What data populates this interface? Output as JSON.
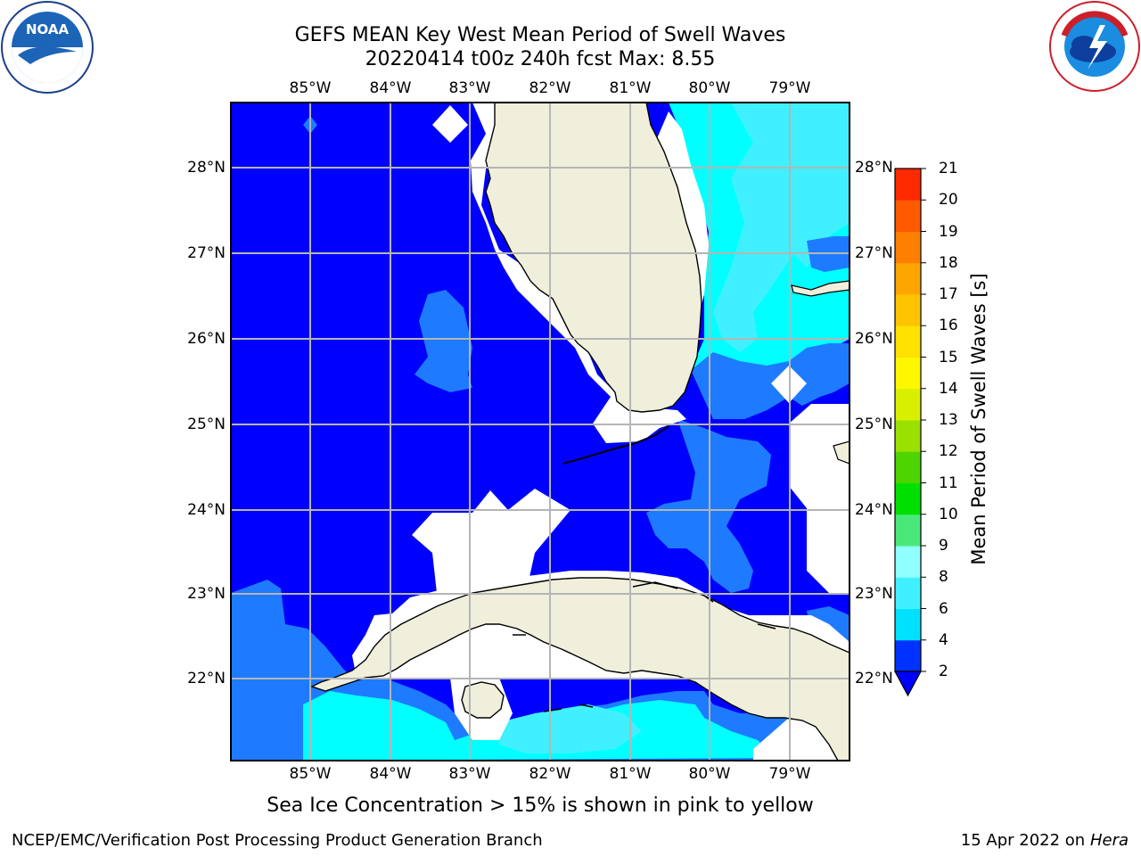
{
  "title_line1": "GEFS MEAN Key West Mean Period of Swell Waves",
  "title_line2": "20220414 t00z 240h fcst   Max: 8.55",
  "logos": {
    "left": "noaa-logo",
    "right": "nws-logo",
    "noaa_text": "NOAA",
    "nws_text": "NATIONAL WEATHER SERVICE"
  },
  "lon_labels": [
    "85°W",
    "84°W",
    "83°W",
    "82°W",
    "81°W",
    "80°W",
    "79°W"
  ],
  "lat_labels": [
    "28°N",
    "27°N",
    "26°N",
    "25°N",
    "24°N",
    "23°N",
    "22°N"
  ],
  "colorbar": {
    "title": "Mean Period of Swell Waves [s]",
    "ticks": [
      "21",
      "20",
      "19",
      "18",
      "17",
      "16",
      "15",
      "14",
      "13",
      "12",
      "11",
      "10",
      "9",
      "8",
      "6",
      "4",
      "2"
    ],
    "levels": [
      2,
      4,
      6,
      8,
      9,
      10,
      11,
      12,
      13,
      14,
      15,
      16,
      17,
      18,
      19,
      20,
      21
    ],
    "colors": [
      "#0032ff",
      "#00e1ff",
      "#40f0ff",
      "#90ffff",
      "#4ae87a",
      "#00e000",
      "#4ed400",
      "#9ae000",
      "#d8f000",
      "#fff700",
      "#ffe200",
      "#ffc400",
      "#ffa500",
      "#ff8000",
      "#ff5a00",
      "#ff2a00"
    ],
    "extend_color": "#0000ff"
  },
  "map_colors": {
    "deep_blue": "#0000ff",
    "mid_blue": "#1e7bff",
    "cyan": "#00ffff",
    "light_cyan": "#40f0ff",
    "land": "#efefdc",
    "no_data": "#ffffff"
  },
  "note": "Sea Ice Concentration > 15% is shown in pink to yellow",
  "footer_left": "NCEP/EMC/Verification Post Processing Product Generation Branch",
  "footer_date": "15 Apr 2022 on ",
  "footer_host": "Hera"
}
